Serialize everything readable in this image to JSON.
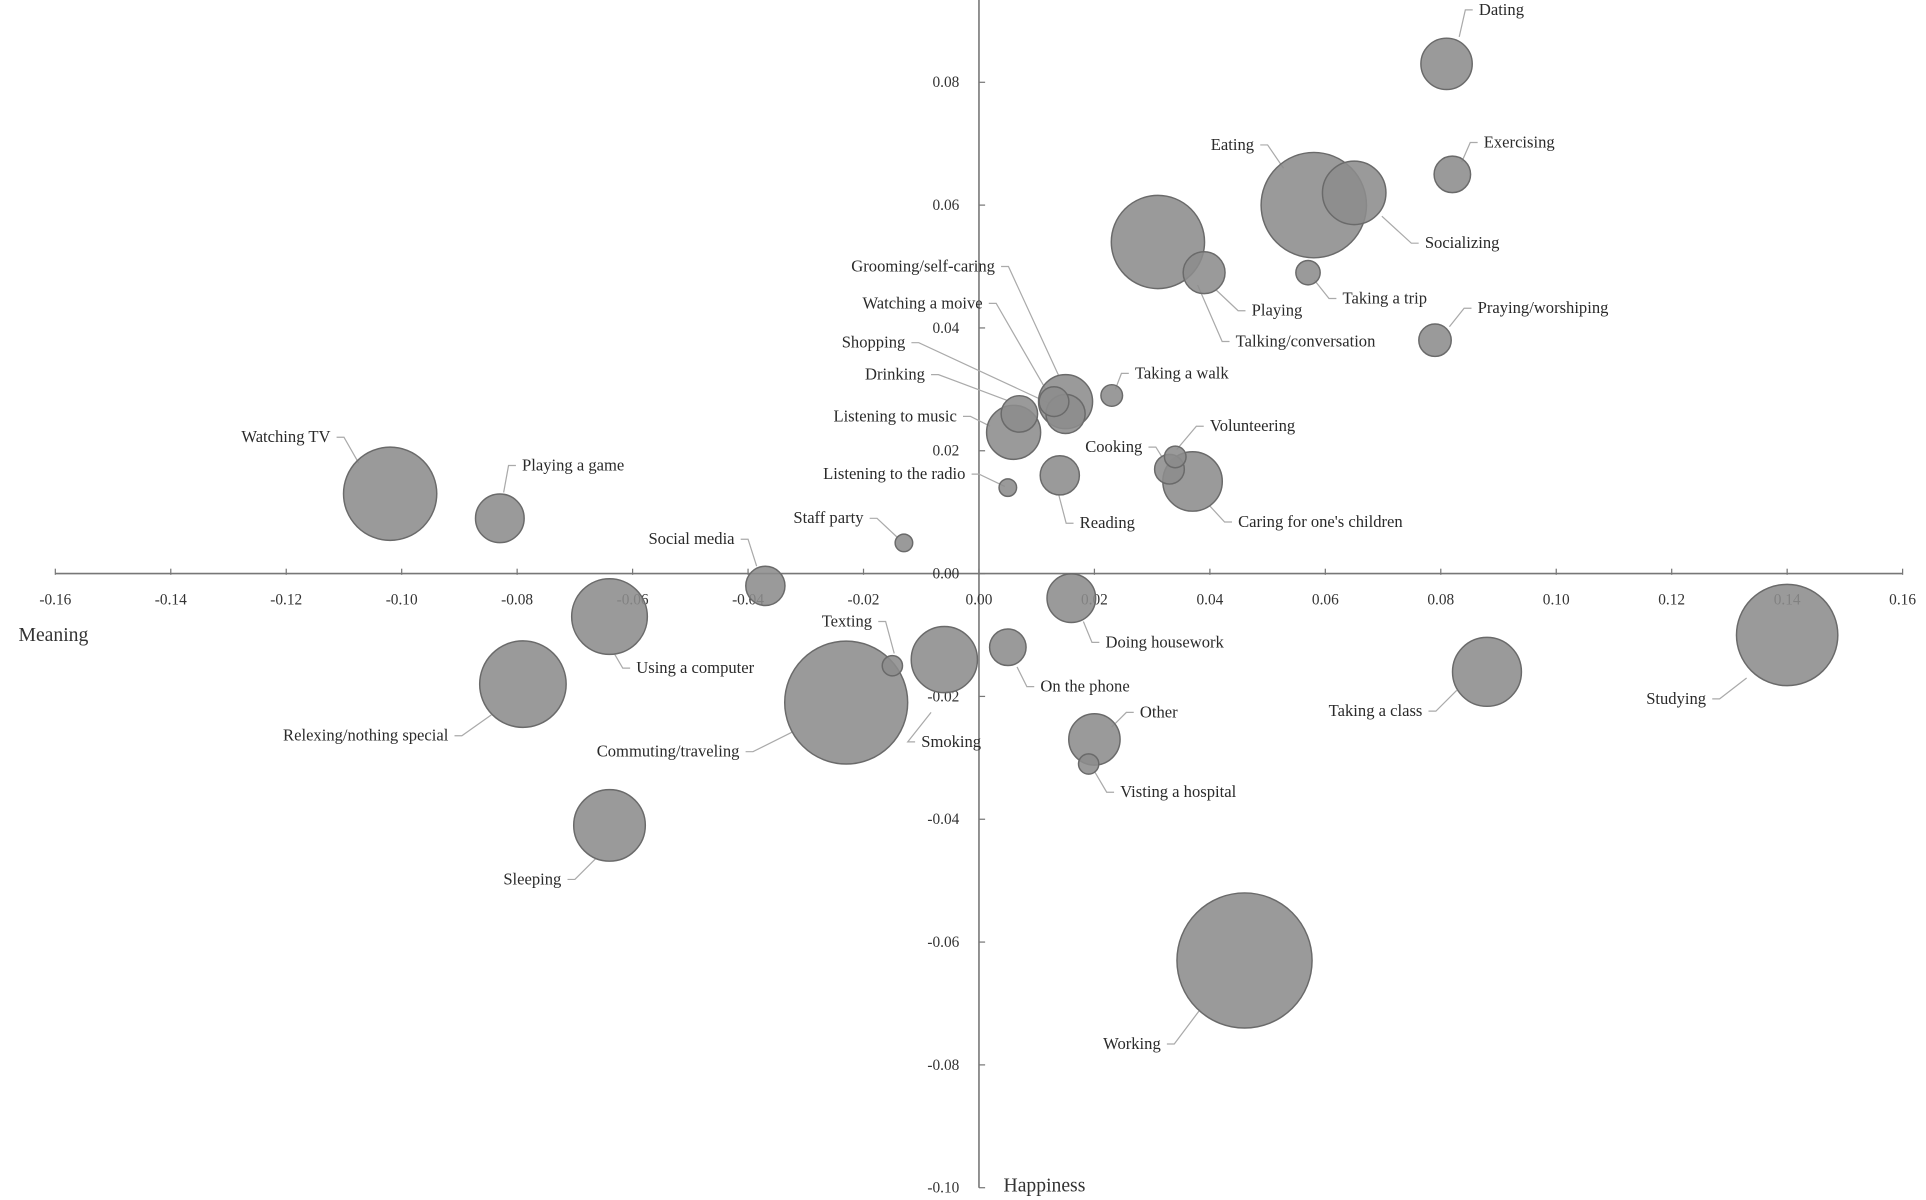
{
  "chart_data": {
    "type": "scatter",
    "variant": "bubble",
    "title": "",
    "xlabel": "Meaning",
    "ylabel": "Happiness",
    "xlim": [
      -0.16,
      0.16
    ],
    "ylim": [
      -0.1,
      0.09
    ],
    "x_ticks": [
      "-0.16",
      "-0.14",
      "-0.12",
      "-0.10",
      "-0.08",
      "-0.06",
      "-0.04",
      "-0.02",
      "0.00",
      "0.02",
      "0.04",
      "0.06",
      "0.08",
      "0.10",
      "0.12",
      "0.14",
      "0.16"
    ],
    "y_ticks": [
      "0.08",
      "0.06",
      "0.04",
      "0.02",
      "0.00",
      "-0.02",
      "-0.04",
      "-0.06",
      "-0.08",
      "-0.10"
    ],
    "grid": false,
    "colors": {
      "bubble_fill": "#8c8c8c",
      "bubble_stroke": "#6a6a6a",
      "axis": "#777777",
      "leader": "#aaaaaa"
    },
    "points": [
      {
        "label": "Dating",
        "x": 0.081,
        "y": 0.083,
        "size": 38
      },
      {
        "label": "Exercising",
        "x": 0.082,
        "y": 0.065,
        "size": 27
      },
      {
        "label": "Eating",
        "x": 0.058,
        "y": 0.06,
        "size": 78
      },
      {
        "label": "Socializing",
        "x": 0.065,
        "y": 0.062,
        "size": 47
      },
      {
        "label": "Taking a trip",
        "x": 0.057,
        "y": 0.049,
        "size": 18
      },
      {
        "label": "Praying/worshiping",
        "x": 0.079,
        "y": 0.038,
        "size": 24
      },
      {
        "label": "Talking/conversation",
        "x": 0.031,
        "y": 0.054,
        "size": 69
      },
      {
        "label": "Playing",
        "x": 0.039,
        "y": 0.049,
        "size": 31
      },
      {
        "label": "Grooming/self-caring",
        "x": 0.015,
        "y": 0.028,
        "size": 40
      },
      {
        "label": "Watching a moive",
        "x": 0.013,
        "y": 0.028,
        "size": 22
      },
      {
        "label": "Shopping",
        "x": 0.015,
        "y": 0.026,
        "size": 29
      },
      {
        "label": "Drinking",
        "x": 0.007,
        "y": 0.026,
        "size": 27
      },
      {
        "label": "Listening  to music",
        "x": 0.006,
        "y": 0.023,
        "size": 40
      },
      {
        "label": "Taking a walk",
        "x": 0.023,
        "y": 0.029,
        "size": 16
      },
      {
        "label": "Listening  to the radio",
        "x": 0.005,
        "y": 0.014,
        "size": 13
      },
      {
        "label": "Reading",
        "x": 0.014,
        "y": 0.016,
        "size": 29
      },
      {
        "label": "Cooking",
        "x": 0.033,
        "y": 0.017,
        "size": 22
      },
      {
        "label": "Volunteering",
        "x": 0.034,
        "y": 0.019,
        "size": 16
      },
      {
        "label": "Caring  for one's children",
        "x": 0.037,
        "y": 0.015,
        "size": 44
      },
      {
        "label": "Staff party",
        "x": -0.013,
        "y": 0.005,
        "size": 13
      },
      {
        "label": "Watching  TV",
        "x": -0.102,
        "y": 0.013,
        "size": 69
      },
      {
        "label": "Playing  a game",
        "x": -0.083,
        "y": 0.009,
        "size": 36
      },
      {
        "label": "Social media",
        "x": -0.037,
        "y": -0.002,
        "size": 29
      },
      {
        "label": "Using a computer",
        "x": -0.064,
        "y": -0.007,
        "size": 56
      },
      {
        "label": "Relexing/nothing  special",
        "x": -0.079,
        "y": -0.018,
        "size": 64
      },
      {
        "label": "Texting",
        "x": -0.015,
        "y": -0.015,
        "size": 15
      },
      {
        "label": "Smoking",
        "x": -0.006,
        "y": -0.014,
        "size": 49
      },
      {
        "label": "Commuting/traveling",
        "x": -0.023,
        "y": -0.021,
        "size": 91
      },
      {
        "label": "On the phone",
        "x": 0.005,
        "y": -0.012,
        "size": 27
      },
      {
        "label": "Doing housework",
        "x": 0.016,
        "y": -0.004,
        "size": 36
      },
      {
        "label": "Other",
        "x": 0.02,
        "y": -0.027,
        "size": 38
      },
      {
        "label": "Visting  a hospital",
        "x": 0.019,
        "y": -0.031,
        "size": 15
      },
      {
        "label": "Sleeping",
        "x": -0.064,
        "y": -0.041,
        "size": 53
      },
      {
        "label": "Working",
        "x": 0.046,
        "y": -0.063,
        "size": 100
      },
      {
        "label": "Taking  a class",
        "x": 0.088,
        "y": -0.016,
        "size": 51
      },
      {
        "label": "Studying",
        "x": 0.14,
        "y": -0.01,
        "size": 75
      }
    ]
  }
}
